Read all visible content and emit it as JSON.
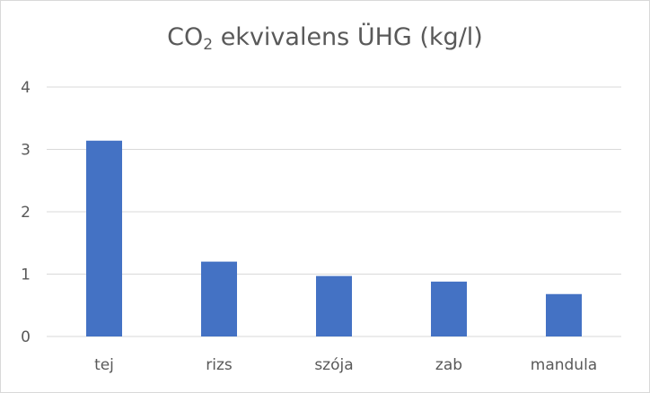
{
  "chart_data": {
    "type": "bar",
    "title": {
      "prefix": "CO",
      "subscript": "2",
      "suffix": " ekvivalens ÜHG (kg/l)"
    },
    "xlabel": "",
    "ylabel": "",
    "categories": [
      "tej",
      "rizs",
      "szója",
      "zab",
      "mandula"
    ],
    "values": [
      3.14,
      1.2,
      0.97,
      0.88,
      0.68
    ],
    "ylim": [
      0,
      4
    ],
    "yticks": [
      "0",
      "1",
      "2",
      "3",
      "4"
    ],
    "grid": true,
    "legend": "none",
    "bar_color": "#4472C4",
    "grid_color": "#d9d9d9",
    "text_color": "#595959"
  }
}
